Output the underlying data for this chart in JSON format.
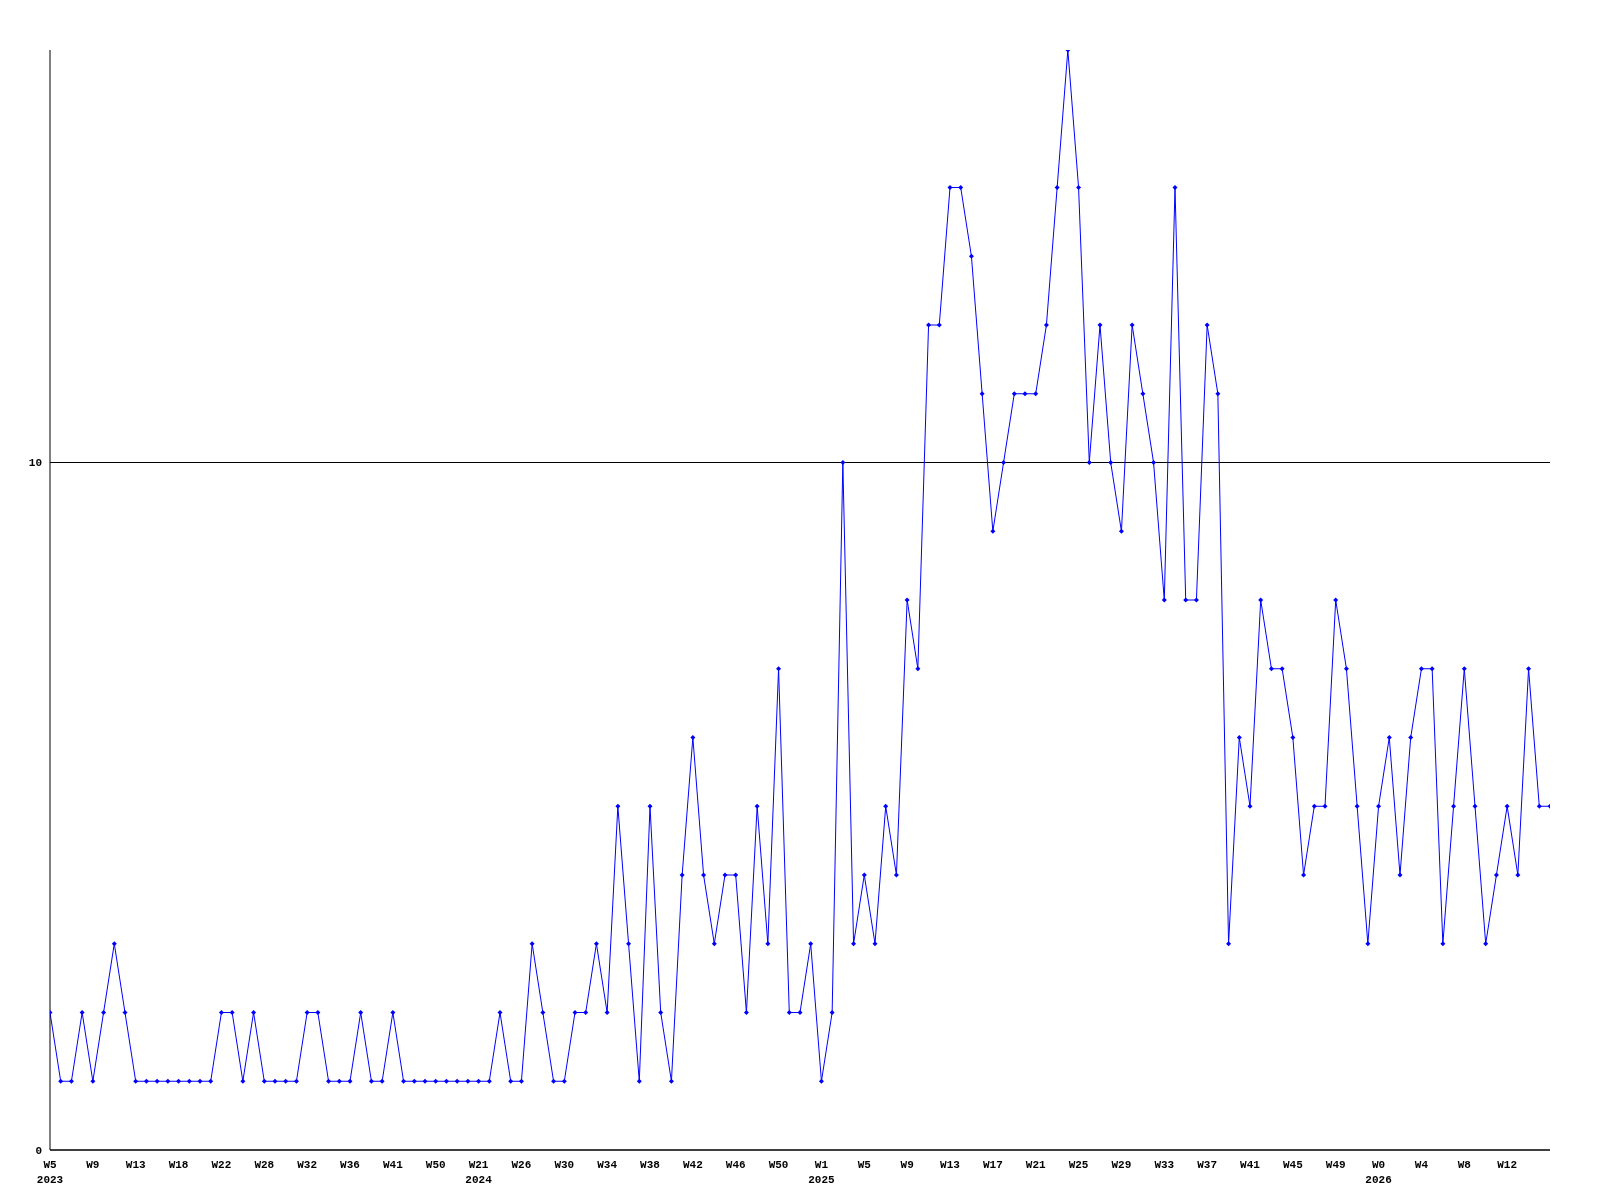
{
  "chart_data": {
    "type": "line",
    "categories": [
      "W5\n2023",
      null,
      null,
      null,
      "W9",
      null,
      null,
      null,
      "W13",
      null,
      null,
      null,
      "W18",
      null,
      null,
      null,
      "W22",
      null,
      null,
      null,
      "W28",
      null,
      null,
      null,
      "W32",
      null,
      null,
      null,
      "W36",
      null,
      null,
      null,
      "W41",
      null,
      null,
      null,
      "W50",
      null,
      null,
      null,
      "W21\n2024",
      null,
      null,
      null,
      "W26",
      null,
      null,
      null,
      "W30",
      null,
      null,
      null,
      "W34",
      null,
      null,
      null,
      "W38",
      null,
      null,
      null,
      "W42",
      null,
      null,
      null,
      "W46",
      null,
      null,
      null,
      "W50",
      null,
      null,
      null,
      "W1\n2025",
      null,
      null,
      null,
      "W5",
      null,
      null,
      null,
      "W9",
      null,
      null,
      null,
      "W13",
      null,
      null,
      null,
      "W17",
      null,
      null,
      null,
      "W21",
      null,
      null,
      null,
      "W25",
      null,
      null,
      null,
      "W29",
      null,
      null,
      null,
      "W33",
      null,
      null,
      null,
      "W37",
      null,
      null,
      null,
      "W41",
      null,
      null,
      null,
      "W45",
      null,
      null,
      null,
      "W49",
      null,
      null,
      null,
      "W0\n2026",
      null,
      null,
      null,
      "W4",
      null,
      null,
      null,
      "W8",
      null,
      null,
      null,
      "W12",
      null,
      null,
      null,
      null
    ],
    "series": [
      {
        "color": "#0000ff",
        "values": [
          2,
          1,
          1,
          2,
          1,
          2,
          3,
          2,
          1,
          1,
          1,
          1,
          1,
          1,
          1,
          1,
          2,
          2,
          1,
          2,
          1,
          1,
          1,
          1,
          2,
          2,
          1,
          1,
          1,
          2,
          1,
          1,
          2,
          1,
          1,
          1,
          1,
          1,
          1,
          1,
          1,
          1,
          2,
          1,
          1,
          3,
          2,
          1,
          1,
          2,
          2,
          3,
          2,
          5,
          3,
          1,
          5,
          2,
          1,
          4,
          6,
          4,
          3,
          4,
          4,
          2,
          5,
          3,
          7,
          2,
          2,
          3,
          1,
          2,
          10,
          3,
          4,
          3,
          5,
          4,
          8,
          7,
          12,
          12,
          14,
          14,
          13,
          11,
          9,
          10,
          11,
          11,
          11,
          12,
          14,
          16,
          14,
          10,
          12,
          10,
          9,
          12,
          11,
          10,
          8,
          14,
          8,
          8,
          12,
          11,
          3,
          6,
          5,
          8,
          7,
          7,
          6,
          4,
          5,
          5,
          8,
          7,
          5,
          3,
          5,
          6,
          4,
          6,
          7,
          7,
          3,
          5,
          7,
          5,
          3,
          4,
          5,
          4,
          7,
          5,
          5
        ]
      }
    ],
    "ylim": [
      0,
      16
    ],
    "yticks": [
      0,
      10
    ],
    "grid": "y",
    "marker": "diamond"
  }
}
